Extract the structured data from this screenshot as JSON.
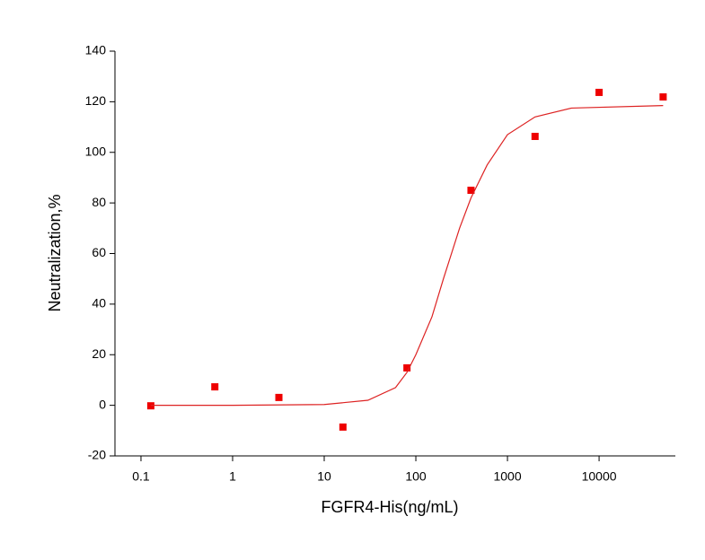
{
  "chart_data": {
    "type": "scatter",
    "x_label": "FGFR4-His(ng/mL)",
    "y_label": "Neutralization,%",
    "xscale": "log",
    "xlim": [
      0.052,
      68000
    ],
    "xticks": [
      0.1,
      1,
      10,
      100,
      1000,
      10000
    ],
    "ylim": [
      -20,
      140
    ],
    "yticks": [
      -20,
      0,
      20,
      40,
      60,
      80,
      100,
      120,
      140
    ],
    "grid": false,
    "series": [
      {
        "mode": "markers",
        "color": "#ee0000",
        "x": [
          0.128,
          0.64,
          3.2,
          16,
          80,
          400,
          2000,
          10000,
          50000
        ],
        "values": [
          -0.2,
          7.3,
          3.1,
          -8.6,
          14.8,
          85,
          106.3,
          123.7,
          121.9
        ]
      },
      {
        "mode": "line",
        "color": "#dd2222",
        "x": [
          0.128,
          1,
          10,
          30,
          60,
          80,
          100,
          150,
          200,
          300,
          400,
          600,
          1000,
          2000,
          5000,
          50000
        ],
        "values": [
          0,
          0,
          0.3,
          2,
          7,
          13,
          20,
          35,
          50,
          70,
          82,
          95,
          107,
          114,
          117.5,
          118.5
        ]
      }
    ]
  }
}
